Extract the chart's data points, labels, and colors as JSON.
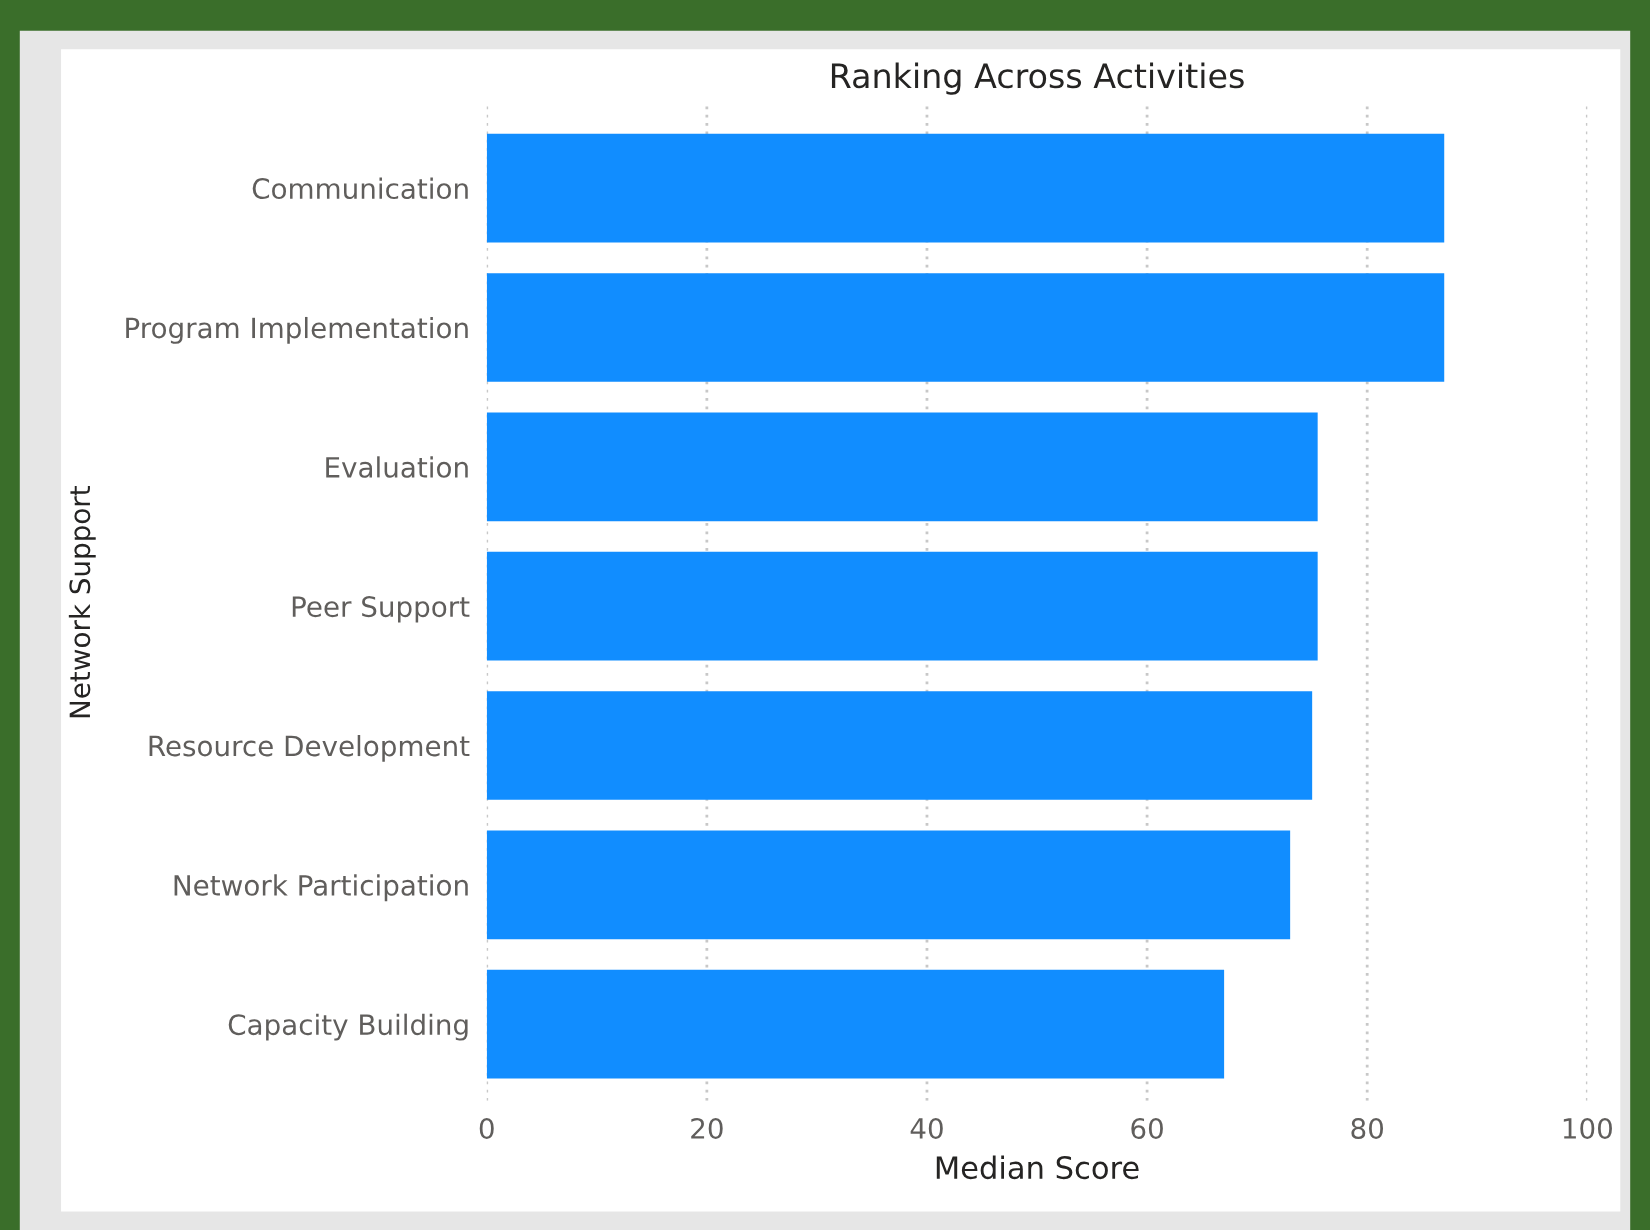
{
  "chart_data": {
    "type": "bar",
    "orientation": "horizontal",
    "title": "Ranking Across Activities",
    "xlabel": "Median Score",
    "ylabel": "Network Support",
    "categories": [
      "Communication",
      "Program Implementation",
      "Evaluation",
      "Peer Support",
      "Resource Development",
      "Network Participation",
      "Capacity Building"
    ],
    "values": [
      87,
      87,
      75.5,
      75.5,
      75,
      73,
      67
    ],
    "color": "#118dff",
    "xlim": [
      0,
      100
    ],
    "xticks": [
      0,
      20,
      40,
      60,
      80,
      100
    ],
    "grid": "x"
  }
}
